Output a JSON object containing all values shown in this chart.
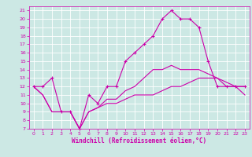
{
  "xlabel": "Windchill (Refroidissement éolien,°C)",
  "background_color": "#cce8e4",
  "grid_color": "#ffffff",
  "line_color": "#cc00aa",
  "x_hours": [
    0,
    1,
    2,
    3,
    4,
    5,
    6,
    7,
    8,
    9,
    10,
    11,
    12,
    13,
    14,
    15,
    16,
    17,
    18,
    19,
    20,
    21,
    22,
    23
  ],
  "temp_actual": [
    12,
    12,
    13,
    9,
    9,
    7,
    11,
    10,
    12,
    12,
    15,
    16,
    17,
    18,
    20,
    21,
    20,
    20,
    19,
    15,
    12,
    12,
    12,
    12
  ],
  "windchill_upper": [
    12,
    11,
    9,
    9,
    9,
    7,
    9,
    9.5,
    10.5,
    10.5,
    11.5,
    12,
    13,
    14,
    14,
    14.5,
    14,
    14,
    14,
    13.5,
    13,
    12.5,
    12,
    12
  ],
  "windchill_lower": [
    12,
    11,
    9,
    9,
    9,
    7,
    9,
    9.5,
    10,
    10,
    10.5,
    11,
    11,
    11,
    11.5,
    12,
    12,
    12.5,
    13,
    13,
    13,
    12,
    12,
    11
  ],
  "ylim": [
    7,
    21.5
  ],
  "xlim": [
    -0.5,
    23.5
  ],
  "yticks": [
    7,
    8,
    9,
    10,
    11,
    12,
    13,
    14,
    15,
    16,
    17,
    18,
    19,
    20,
    21
  ],
  "xticks": [
    0,
    1,
    2,
    3,
    4,
    5,
    6,
    7,
    8,
    9,
    10,
    11,
    12,
    13,
    14,
    15,
    16,
    17,
    18,
    19,
    20,
    21,
    22,
    23
  ],
  "tick_fontsize": 4.5,
  "xlabel_fontsize": 5.5,
  "spine_color": "#cc00aa"
}
